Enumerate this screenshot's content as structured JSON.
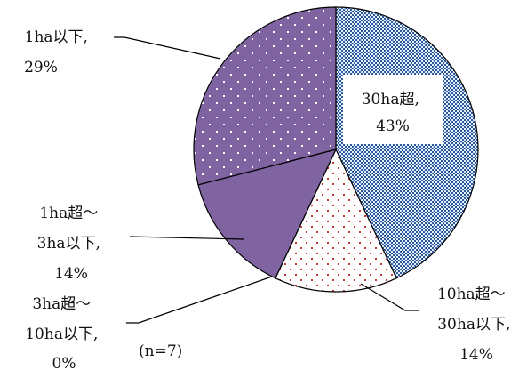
{
  "chart_data": {
    "type": "pie",
    "categories": [
      "30ha超",
      "10ha超～30ha以下",
      "3ha超～10ha以下",
      "1ha超～3ha以下",
      "1ha以下"
    ],
    "values": [
      43,
      14,
      0,
      14,
      29
    ],
    "unit": "%",
    "start_angle_deg": 0,
    "direction": "clockwise",
    "note": "(n=7)",
    "slices": [
      {
        "name": "30ha超",
        "value": 43,
        "label_lines": [
          "30ha超,",
          "43%"
        ],
        "fill": "#e6eef9",
        "pattern": "grid",
        "pattern_color": "#2c5aa0"
      },
      {
        "name": "10ha超～30ha以下",
        "value": 14,
        "label_lines": [
          "10ha超～",
          "30ha以下,",
          "14%"
        ],
        "fill": "#ffffff",
        "pattern": "dots",
        "pattern_color": "#c0392b"
      },
      {
        "name": "3ha超～10ha以下",
        "value": 0,
        "label_lines": [
          "3ha超～",
          "10ha以下,",
          "0%"
        ],
        "fill": "#8064a2",
        "pattern": "none",
        "pattern_color": ""
      },
      {
        "name": "1ha超～3ha以下",
        "value": 14,
        "label_lines": [
          "1ha超～",
          "3ha以下,",
          "14%"
        ],
        "fill": "#8064a2",
        "pattern": "none",
        "pattern_color": ""
      },
      {
        "name": "1ha以下",
        "value": 29,
        "label_lines": [
          "1ha以下,",
          "29%"
        ],
        "fill": "#8064a2",
        "pattern": "dots",
        "pattern_color": "#ffffff"
      }
    ]
  }
}
